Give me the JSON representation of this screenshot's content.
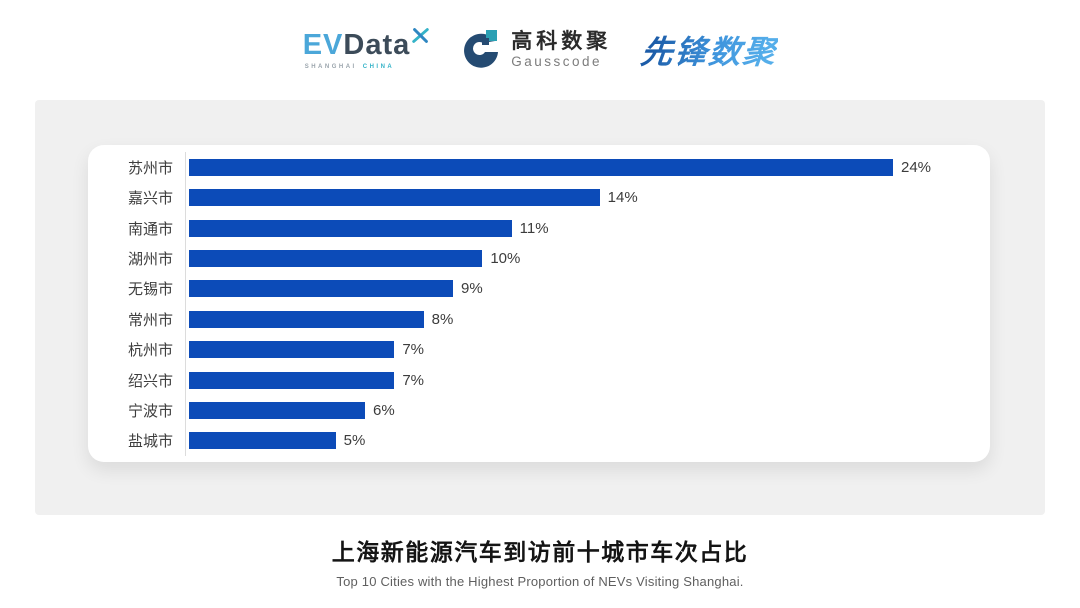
{
  "header": {
    "evdata": {
      "ev": "EV",
      "data": "Data",
      "sub_left": "SHANGHAI",
      "sub_right": "CHINA"
    },
    "gausscode": {
      "cn": "高科数聚",
      "en": "Gausscode"
    },
    "xianfeng": {
      "text": "先锋数聚"
    }
  },
  "chart_data": {
    "type": "bar",
    "orientation": "horizontal",
    "categories": [
      "苏州市",
      "嘉兴市",
      "南通市",
      "湖州市",
      "无锡市",
      "常州市",
      "杭州市",
      "绍兴市",
      "宁波市",
      "盐城市"
    ],
    "values": [
      24,
      14,
      11,
      10,
      9,
      8,
      7,
      7,
      6,
      5
    ],
    "value_labels": [
      "24%",
      "14%",
      "11%",
      "10%",
      "9%",
      "8%",
      "7%",
      "7%",
      "6%",
      "5%"
    ],
    "xlim": [
      0,
      24
    ],
    "grid": false,
    "legend": "none",
    "bar_color": "#0c4bb8",
    "title": "上海新能源汽车到访前十城市车次占比",
    "subtitle": "Top 10 Cities with the Highest Proportion of  NEVs Visiting Shanghai."
  },
  "caption": {
    "title": "上海新能源汽车到访前十城市车次占比",
    "subtitle": "Top 10 Cities with the Highest Proportion of  NEVs Visiting Shanghai."
  },
  "colors": {
    "bar_blue": "#0c4bb8",
    "panel_gray": "#f0f0f0",
    "evdata_light_blue": "#4ba7d9",
    "evdata_dark": "#3c4b59",
    "gauss_navy": "#254b72",
    "gauss_teal": "#2aa0b4",
    "xianfeng_blue": "#2f7fc9"
  }
}
